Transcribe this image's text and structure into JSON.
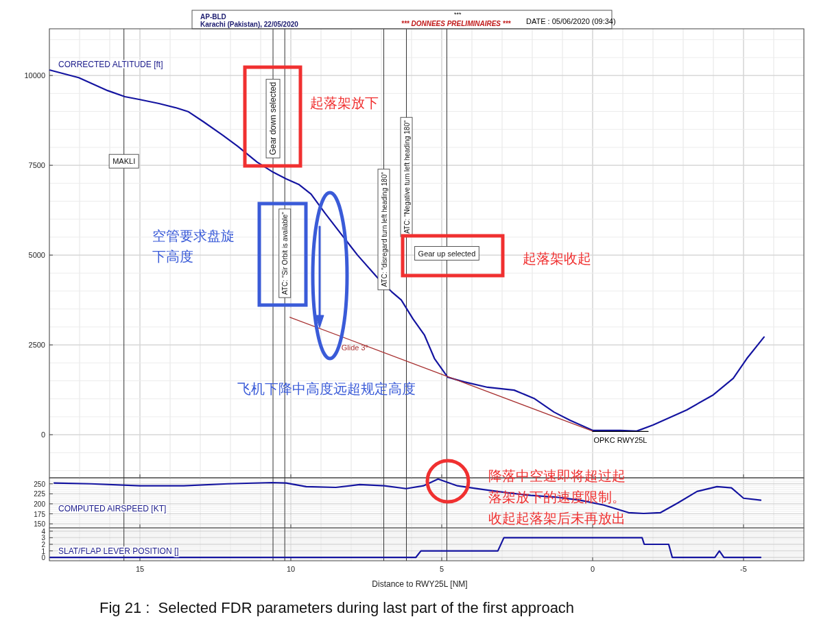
{
  "chart_data": [
    {
      "type": "line",
      "ylabel": "CORRECTED ALTITUDE [ft]",
      "xlim": [
        18,
        -7
      ],
      "ylim": [
        -1200,
        11300
      ],
      "xticks": [
        15,
        10,
        5,
        0,
        -5
      ],
      "yticks": [
        0,
        2500,
        5000,
        7500,
        10000
      ],
      "tick_labels": "y",
      "grid": true,
      "series": [
        {
          "type": "line",
          "color": "#1414a0",
          "x": [
            17.98,
            17.03,
            16.07,
            15.5,
            15.0,
            14.37,
            13.8,
            13.39,
            12.89,
            12.26,
            11.76,
            11.12,
            10.59,
            10.15,
            9.74,
            9.33,
            8.86,
            8.29,
            7.79,
            7.15,
            6.66,
            6.34,
            5.95,
            5.57,
            5.24,
            4.8,
            4.25,
            3.48,
            2.6,
            1.94,
            1.28,
            0.74,
            0.0,
            -0.92,
            -1.46,
            -2.0,
            -3.12,
            -4.0,
            -4.66,
            -5.11,
            -5.68
          ],
          "values": [
            10150,
            9940,
            9580,
            9410,
            9330,
            9220,
            9100,
            8990,
            8710,
            8340,
            8030,
            7590,
            7310,
            7120,
            6970,
            6700,
            6160,
            5540,
            5000,
            4390,
            3980,
            3750,
            3220,
            2770,
            2120,
            1600,
            1470,
            1320,
            1240,
            1010,
            630,
            400,
            120,
            120,
            100,
            270,
            690,
            1110,
            1570,
            2120,
            2720
          ]
        },
        {
          "type": "line",
          "name": "Glide 3°",
          "color": "#a83232",
          "x": [
            10.03,
            0.0
          ],
          "values": [
            3270,
            100
          ]
        },
        {
          "type": "line",
          "name": "OPKC RWY25L",
          "color": "#000000",
          "x": [
            0.0,
            -1.84
          ],
          "values": [
            90,
            90
          ]
        }
      ],
      "ref_lines": [
        {
          "axis": "x",
          "value": 15.53,
          "label": "MAKLI"
        },
        {
          "axis": "x",
          "value": 10.59,
          "label": "Gear down selected"
        },
        {
          "axis": "x",
          "value": 10.2,
          "label": "ATC: \"Sir Orbit is available\""
        },
        {
          "axis": "x",
          "value": 6.92,
          "label": "ATC: \"disregard turn left heading 180\""
        },
        {
          "axis": "x",
          "value": 6.17,
          "label": "ATC: \"Negative turn left heading 180\""
        },
        {
          "axis": "x",
          "value": 4.83,
          "label": "Gear up selected"
        }
      ],
      "annotations": [
        "AP-BLD",
        "Karachi (Pakistan), 22/05/2020",
        "***",
        "*** DONNEES PRELIMINAIRES ***",
        "DATE : 05/06/2020 (09:34)",
        "起落架放下",
        "空管要求盘旋下高度",
        "飞机下降中高度远超规定高度",
        "起落架收起",
        "降落中空速即将超过起落架放下的速度限制。收起起落架后未再放出"
      ]
    },
    {
      "type": "line",
      "ylabel": "COMPUTED AIRSPEED [KT]",
      "xlim": [
        18,
        -7
      ],
      "ylim": [
        140,
        265
      ],
      "xticks": [
        15,
        10,
        5,
        0,
        -5
      ],
      "yticks": [
        150,
        175,
        200,
        225,
        250
      ],
      "tick_labels": "y",
      "grid": true,
      "series": [
        {
          "type": "line",
          "color": "#1414a0",
          "x": [
            17.84,
            16.62,
            15.0,
            13.55,
            12.1,
            10.62,
            10.15,
            9.49,
            8.51,
            7.72,
            6.9,
            6.18,
            5.61,
            5.12,
            4.48,
            3.66,
            2.85,
            2.05,
            1.24,
            0.42,
            -0.37,
            -1.19,
            -1.69,
            -2.25,
            -2.82,
            -3.46,
            -4.12,
            -4.6,
            -5.0,
            -5.57
          ],
          "values": [
            252,
            250,
            245,
            245,
            250,
            253,
            252,
            243,
            241,
            248,
            245,
            238,
            245,
            262,
            245,
            236,
            228,
            221,
            217,
            209,
            197,
            178,
            176,
            178,
            202,
            231,
            243,
            240,
            214,
            209
          ]
        }
      ],
      "ref_lines": [
        {
          "axis": "x",
          "value": 15.53
        },
        {
          "axis": "x",
          "value": 10.59
        },
        {
          "axis": "x",
          "value": 10.2
        },
        {
          "axis": "x",
          "value": 6.92
        },
        {
          "axis": "x",
          "value": 6.17
        },
        {
          "axis": "x",
          "value": 4.83
        }
      ]
    },
    {
      "type": "line",
      "ylabel": "SLAT/FLAP LEVER POSITION []",
      "xlabel": "Distance to RWY25L [NM]",
      "xlim": [
        18,
        -7
      ],
      "ylim": [
        -0.5,
        4.5
      ],
      "xticks": [
        15,
        10,
        5,
        0,
        -5
      ],
      "yticks": [
        0,
        1,
        2,
        3,
        4
      ],
      "grid": true,
      "series": [
        {
          "type": "line",
          "color": "#1414a0",
          "x": [
            17.97,
            5.86,
            5.69,
            3.14,
            2.94,
            -1.64,
            -1.71,
            -2.52,
            -2.64,
            -4.05,
            -4.2,
            -4.35,
            -5.57
          ],
          "values": [
            0,
            0,
            1,
            1,
            3,
            3,
            2,
            2,
            0,
            0,
            1,
            0,
            0
          ]
        }
      ],
      "ref_lines": [
        {
          "axis": "x",
          "value": 15.53
        },
        {
          "axis": "x",
          "value": 10.59
        },
        {
          "axis": "x",
          "value": 10.2
        },
        {
          "axis": "x",
          "value": 6.92
        },
        {
          "axis": "x",
          "value": 6.17
        },
        {
          "axis": "x",
          "value": 4.83
        }
      ],
      "annotations": [
        "Fig 21 :  Selected FDR parameters during last part of the first approach"
      ]
    }
  ]
}
